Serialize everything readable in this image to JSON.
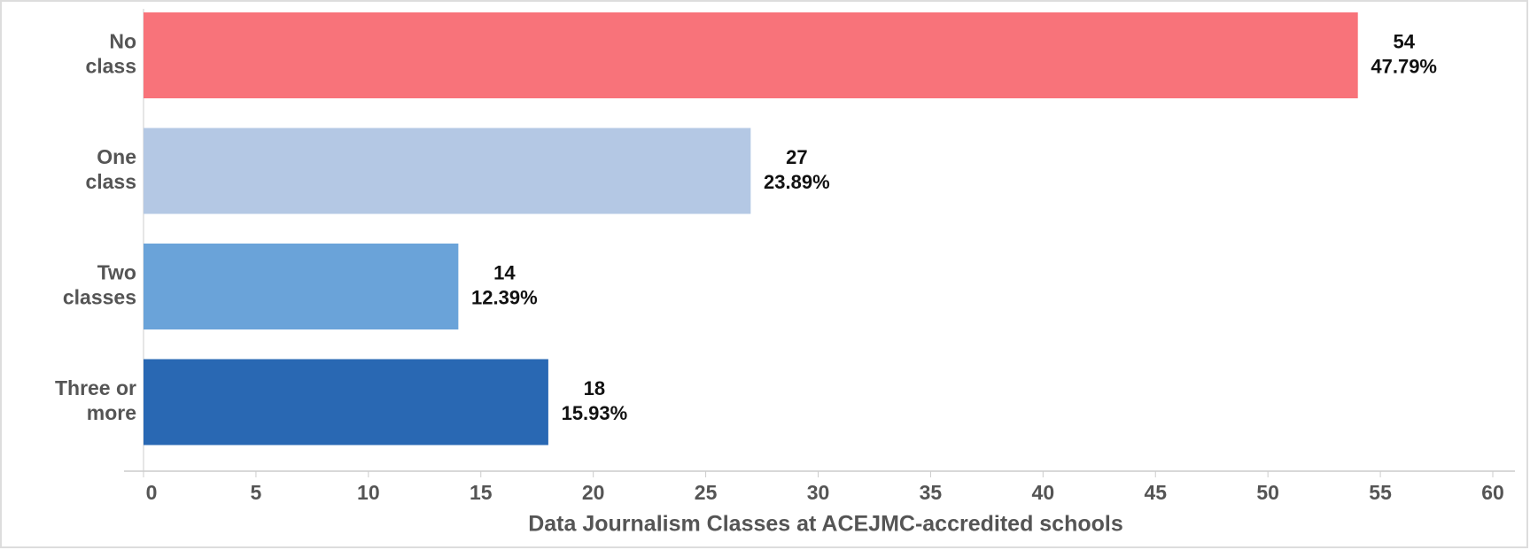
{
  "chart_data": {
    "type": "hbar",
    "categories": [
      "No class",
      "One class",
      "Two classes",
      "Three or more"
    ],
    "values": [
      54,
      27,
      14,
      18
    ],
    "percent_labels": [
      "47.79%",
      "23.89%",
      "12.39%",
      "15.93%"
    ],
    "colors": [
      "#f8737a",
      "#b4c8e4",
      "#6aa3d9",
      "#2968b3"
    ],
    "xlabel": "Data Journalism Classes at ACEJMC-accredited schools",
    "xlim": [
      0,
      60
    ],
    "xticks": [
      0,
      5,
      10,
      15,
      20,
      25,
      30,
      35,
      40,
      45,
      50,
      55,
      60
    ],
    "grid": false
  }
}
